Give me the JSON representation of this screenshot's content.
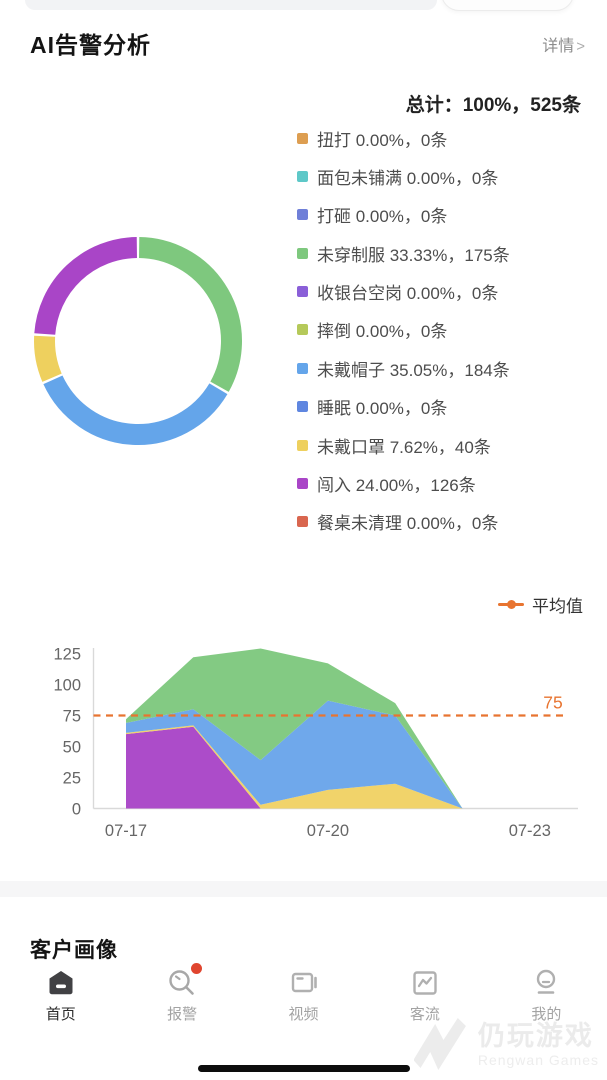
{
  "header": {
    "title": "AI告警分析",
    "detail_label": "详情",
    "detail_arrow": ">"
  },
  "summary": {
    "total_label": "总计：100%，525条"
  },
  "sections": {
    "customer_profile": "客户画像"
  },
  "chart_data": [
    {
      "type": "pie",
      "donut": true,
      "legend_position": "right",
      "total_label": "总计：100%，525条",
      "unit": "条",
      "slices": [
        {
          "label": "扭打",
          "pct": 0.0,
          "pct_label": "0.00%",
          "count": 0,
          "color": "#dd9e51"
        },
        {
          "label": "面包未铺满",
          "pct": 0.0,
          "pct_label": "0.00%",
          "count": 0,
          "color": "#5ec8c8"
        },
        {
          "label": "打砸",
          "pct": 0.0,
          "pct_label": "0.00%",
          "count": 0,
          "color": "#6f7fd8"
        },
        {
          "label": "未穿制服",
          "pct": 33.33,
          "pct_label": "33.33%",
          "count": 175,
          "color": "#7ec87e"
        },
        {
          "label": "收银台空岗",
          "pct": 0.0,
          "pct_label": "0.00%",
          "count": 0,
          "color": "#8a5fd8"
        },
        {
          "label": "摔倒",
          "pct": 0.0,
          "pct_label": "0.00%",
          "count": 0,
          "color": "#b5c95a"
        },
        {
          "label": "未戴帽子",
          "pct": 35.05,
          "pct_label": "35.05%",
          "count": 184,
          "color": "#64a5ea"
        },
        {
          "label": "睡眠",
          "pct": 0.0,
          "pct_label": "0.00%",
          "count": 0,
          "color": "#5f86e0"
        },
        {
          "label": "未戴口罩",
          "pct": 7.62,
          "pct_label": "7.62%",
          "count": 40,
          "color": "#eed05e"
        },
        {
          "label": "闯入",
          "pct": 24.0,
          "pct_label": "24.00%",
          "count": 126,
          "color": "#a945c7"
        },
        {
          "label": "餐桌未清理",
          "pct": 0.0,
          "pct_label": "0.00%",
          "count": 0,
          "color": "#d9664f"
        }
      ]
    },
    {
      "type": "area",
      "stacked": true,
      "grid": false,
      "x": [
        "07-17",
        "07-18",
        "07-19",
        "07-20",
        "07-21",
        "07-22",
        "07-23"
      ],
      "series": [
        {
          "name": "闯入",
          "color": "#a945c7",
          "values": [
            60,
            66,
            0,
            0,
            0,
            0,
            0
          ]
        },
        {
          "name": "未戴口罩",
          "color": "#f0d164",
          "values": [
            1,
            1,
            3,
            15,
            20,
            0,
            0
          ]
        },
        {
          "name": "未戴帽子",
          "color": "#69a4ea",
          "values": [
            8,
            13,
            36,
            72,
            55,
            0,
            0
          ]
        },
        {
          "name": "未穿制服",
          "color": "#7ec87e",
          "values": [
            3,
            42,
            90,
            30,
            10,
            0,
            0
          ]
        }
      ],
      "ylim": [
        0,
        125
      ],
      "yticks": [
        0,
        25,
        50,
        75,
        100,
        125
      ],
      "xtick_labels": [
        "07-17",
        "07-20",
        "07-23"
      ],
      "xtick_indices": [
        0,
        3,
        6
      ],
      "average_line": {
        "value": 75,
        "label": "75",
        "color": "#e87430",
        "legend_label": "平均值"
      }
    }
  ],
  "nav": {
    "items": [
      {
        "label": "首页",
        "icon": "home-icon",
        "active": true,
        "badge": false
      },
      {
        "label": "报警",
        "icon": "alarm-search-icon",
        "active": false,
        "badge": true
      },
      {
        "label": "视频",
        "icon": "video-icon",
        "active": false,
        "badge": false
      },
      {
        "label": "客流",
        "icon": "customer-flow-chart-icon",
        "active": false,
        "badge": false
      },
      {
        "label": "我的",
        "icon": "profile-icon",
        "active": false,
        "badge": false
      }
    ]
  },
  "watermark": {
    "text": "仍玩游戏",
    "subtext": "Rengwan Games"
  }
}
